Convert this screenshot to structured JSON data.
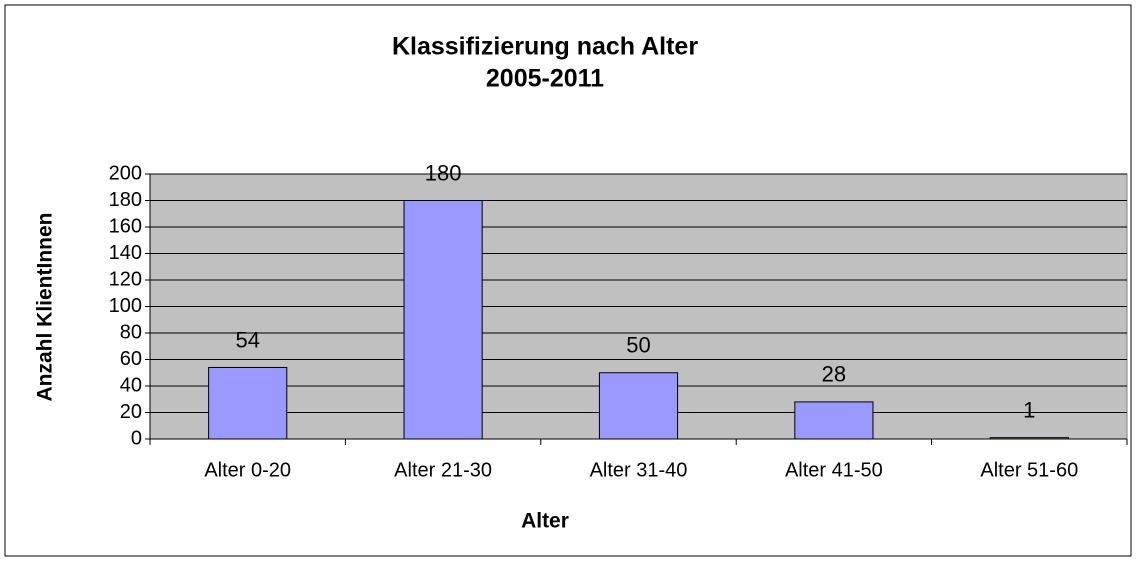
{
  "chart_data": {
    "type": "bar",
    "title": [
      "Klassifizierung nach Alter",
      "2005-2011"
    ],
    "x_label": "Alter",
    "y_label": "Anzahl KlientInnen",
    "categories": [
      "Alter 0-20",
      "Alter 21-30",
      "Alter 31-40",
      "Alter 41-50",
      "Alter 51-60"
    ],
    "values": [
      54,
      180,
      50,
      28,
      1
    ],
    "color": "#9999ff",
    "ylim": [
      0,
      200
    ],
    "yticks": [
      0,
      20,
      40,
      60,
      80,
      100,
      120,
      140,
      160,
      180,
      200
    ],
    "grid": true
  }
}
